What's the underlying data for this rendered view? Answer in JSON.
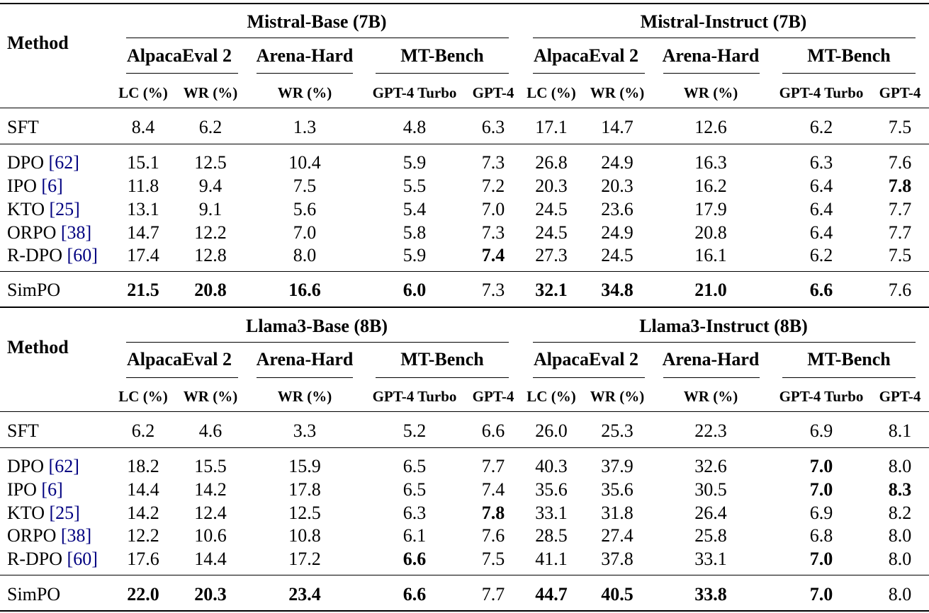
{
  "header": {
    "method_label": "Method",
    "benchmarks": [
      "AlpacaEval 2",
      "Arena-Hard",
      "MT-Bench"
    ],
    "sub_columns": [
      "LC (%)",
      "WR (%)",
      "WR (%)",
      "GPT-4 Turbo",
      "GPT-4"
    ]
  },
  "tables": [
    {
      "groups": [
        "Mistral-Base (7B)",
        "Mistral-Instruct (7B)"
      ],
      "rows": [
        {
          "method": "SFT",
          "cite": "",
          "values": [
            "8.4",
            "6.2",
            "1.3",
            "4.8",
            "6.3",
            "17.1",
            "14.7",
            "12.6",
            "6.2",
            "7.5"
          ]
        },
        {
          "method": "DPO",
          "cite": "62",
          "values": [
            "15.1",
            "12.5",
            "10.4",
            "5.9",
            "7.3",
            "26.8",
            "24.9",
            "16.3",
            "6.3",
            "7.6"
          ]
        },
        {
          "method": "IPO",
          "cite": "6",
          "values": [
            "11.8",
            "9.4",
            "7.5",
            "5.5",
            "7.2",
            "20.3",
            "20.3",
            "16.2",
            "6.4",
            "7.8"
          ]
        },
        {
          "method": "KTO",
          "cite": "25",
          "values": [
            "13.1",
            "9.1",
            "5.6",
            "5.4",
            "7.0",
            "24.5",
            "23.6",
            "17.9",
            "6.4",
            "7.7"
          ]
        },
        {
          "method": "ORPO",
          "cite": "38",
          "values": [
            "14.7",
            "12.2",
            "7.0",
            "5.8",
            "7.3",
            "24.5",
            "24.9",
            "20.8",
            "6.4",
            "7.7"
          ]
        },
        {
          "method": "R-DPO",
          "cite": "60",
          "values": [
            "17.4",
            "12.8",
            "8.0",
            "5.9",
            "7.4",
            "27.3",
            "24.5",
            "16.1",
            "6.2",
            "7.5"
          ]
        },
        {
          "method": "SimPO",
          "cite": "",
          "values": [
            "21.5",
            "20.8",
            "16.6",
            "6.0",
            "7.3",
            "32.1",
            "34.8",
            "21.0",
            "6.6",
            "7.6"
          ]
        }
      ],
      "bold": [
        [
          2,
          9
        ],
        [
          5,
          4
        ],
        [
          6,
          0
        ],
        [
          6,
          1
        ],
        [
          6,
          2
        ],
        [
          6,
          3
        ],
        [
          6,
          5
        ],
        [
          6,
          6
        ],
        [
          6,
          7
        ],
        [
          6,
          8
        ]
      ]
    },
    {
      "groups": [
        "Llama3-Base (8B)",
        "Llama3-Instruct (8B)"
      ],
      "rows": [
        {
          "method": "SFT",
          "cite": "",
          "values": [
            "6.2",
            "4.6",
            "3.3",
            "5.2",
            "6.6",
            "26.0",
            "25.3",
            "22.3",
            "6.9",
            "8.1"
          ]
        },
        {
          "method": "DPO",
          "cite": "62",
          "values": [
            "18.2",
            "15.5",
            "15.9",
            "6.5",
            "7.7",
            "40.3",
            "37.9",
            "32.6",
            "7.0",
            "8.0"
          ]
        },
        {
          "method": "IPO",
          "cite": "6",
          "values": [
            "14.4",
            "14.2",
            "17.8",
            "6.5",
            "7.4",
            "35.6",
            "35.6",
            "30.5",
            "7.0",
            "8.3"
          ]
        },
        {
          "method": "KTO",
          "cite": "25",
          "values": [
            "14.2",
            "12.4",
            "12.5",
            "6.3",
            "7.8",
            "33.1",
            "31.8",
            "26.4",
            "6.9",
            "8.2"
          ]
        },
        {
          "method": "ORPO",
          "cite": "38",
          "values": [
            "12.2",
            "10.6",
            "10.8",
            "6.1",
            "7.6",
            "28.5",
            "27.4",
            "25.8",
            "6.8",
            "8.0"
          ]
        },
        {
          "method": "R-DPO",
          "cite": "60",
          "values": [
            "17.6",
            "14.4",
            "17.2",
            "6.6",
            "7.5",
            "41.1",
            "37.8",
            "33.1",
            "7.0",
            "8.0"
          ]
        },
        {
          "method": "SimPO",
          "cite": "",
          "values": [
            "22.0",
            "20.3",
            "23.4",
            "6.6",
            "7.7",
            "44.7",
            "40.5",
            "33.8",
            "7.0",
            "8.0"
          ]
        }
      ],
      "bold": [
        [
          1,
          8
        ],
        [
          2,
          8
        ],
        [
          2,
          9
        ],
        [
          3,
          4
        ],
        [
          5,
          3
        ],
        [
          5,
          8
        ],
        [
          6,
          0
        ],
        [
          6,
          1
        ],
        [
          6,
          2
        ],
        [
          6,
          3
        ],
        [
          6,
          5
        ],
        [
          6,
          6
        ],
        [
          6,
          7
        ],
        [
          6,
          8
        ]
      ]
    }
  ]
}
